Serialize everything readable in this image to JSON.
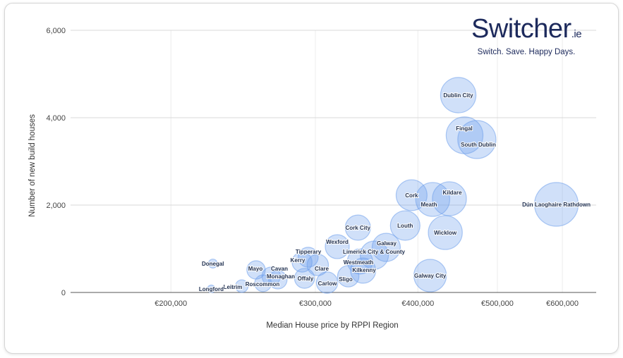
{
  "logo": {
    "word": "Switcher",
    "suffix": ".ie",
    "tagline": "Switch. Save. Happy Days."
  },
  "chart_data": {
    "type": "bubble",
    "title": "",
    "xlabel": "Median House price by RPPI Region",
    "ylabel": "Number of new build houses",
    "x_scale": "log",
    "xlim": [
      170000,
      650000
    ],
    "ylim": [
      0,
      6000
    ],
    "x_ticks": [
      {
        "value": 200000,
        "label": "€200,000"
      },
      {
        "value": 300000,
        "label": "€300,000"
      },
      {
        "value": 400000,
        "label": "€400,000"
      },
      {
        "value": 500000,
        "label": "€500,000"
      },
      {
        "value": 600000,
        "label": "€600,000"
      }
    ],
    "y_ticks": [
      {
        "value": 0,
        "label": "0"
      },
      {
        "value": 2000,
        "label": "2,000"
      },
      {
        "value": 4000,
        "label": "4,000"
      },
      {
        "value": 6000,
        "label": "6,000"
      }
    ],
    "grid": true,
    "bubble_color": "#6d9eeb",
    "points": [
      {
        "label": "Dublin City",
        "x": 448000,
        "y": 4516,
        "size": 6.3
      },
      {
        "label": "Fingal",
        "x": 456000,
        "y": 3597,
        "size": 6.8
      },
      {
        "label": "South Dublin",
        "x": 472000,
        "y": 3500,
        "size": 7.3
      },
      {
        "label": "Dún Laoghaire Rathdown",
        "x": 590000,
        "y": 2016,
        "size": 9.6
      },
      {
        "label": "Cork",
        "x": 393000,
        "y": 2226,
        "size": 4.8
      },
      {
        "label": "Meath",
        "x": 417000,
        "y": 2129,
        "size": 5.8
      },
      {
        "label": "Kildare",
        "x": 437000,
        "y": 2145,
        "size": 5.8
      },
      {
        "label": "Louth",
        "x": 386000,
        "y": 1532,
        "size": 4.4
      },
      {
        "label": "Wicklow",
        "x": 432000,
        "y": 1371,
        "size": 5.8
      },
      {
        "label": "Galway City",
        "x": 414000,
        "y": 387,
        "size": 5.3
      },
      {
        "label": "Cork City",
        "x": 338000,
        "y": 1484,
        "size": 3.2
      },
      {
        "label": "Galway",
        "x": 366000,
        "y": 1032,
        "size": 4.0
      },
      {
        "label": "Wexford",
        "x": 319000,
        "y": 1048,
        "size": 2.9
      },
      {
        "label": "Limerick City & County",
        "x": 354000,
        "y": 855,
        "size": 4.0
      },
      {
        "label": "Westmeath",
        "x": 340000,
        "y": 710,
        "size": 3.2
      },
      {
        "label": "Kilkenny",
        "x": 343000,
        "y": 500,
        "size": 3.2
      },
      {
        "label": "Sligo",
        "x": 329000,
        "y": 371,
        "size": 2.3
      },
      {
        "label": "Carlow",
        "x": 310000,
        "y": 226,
        "size": 2.3
      },
      {
        "label": "Offaly",
        "x": 291000,
        "y": 323,
        "size": 2.0
      },
      {
        "label": "Tipperary",
        "x": 294000,
        "y": 806,
        "size": 2.0
      },
      {
        "label": "Kerry",
        "x": 289000,
        "y": 694,
        "size": 2.0
      },
      {
        "label": "Clare",
        "x": 302000,
        "y": 629,
        "size": 2.3
      },
      {
        "label": "Cavan",
        "x": 265000,
        "y": 371,
        "size": 1.7
      },
      {
        "label": "Monaghan",
        "x": 270000,
        "y": 290,
        "size": 1.7
      },
      {
        "label": "Mayo",
        "x": 254000,
        "y": 516,
        "size": 1.7
      },
      {
        "label": "Roscommon",
        "x": 259000,
        "y": 210,
        "size": 1.4
      },
      {
        "label": "Leitrim",
        "x": 244000,
        "y": 145,
        "size": 0.8
      },
      {
        "label": "Donegal",
        "x": 225000,
        "y": 661,
        "size": 0.4
      },
      {
        "label": "Longford",
        "x": 224000,
        "y": 81,
        "size": 0.3
      }
    ]
  }
}
